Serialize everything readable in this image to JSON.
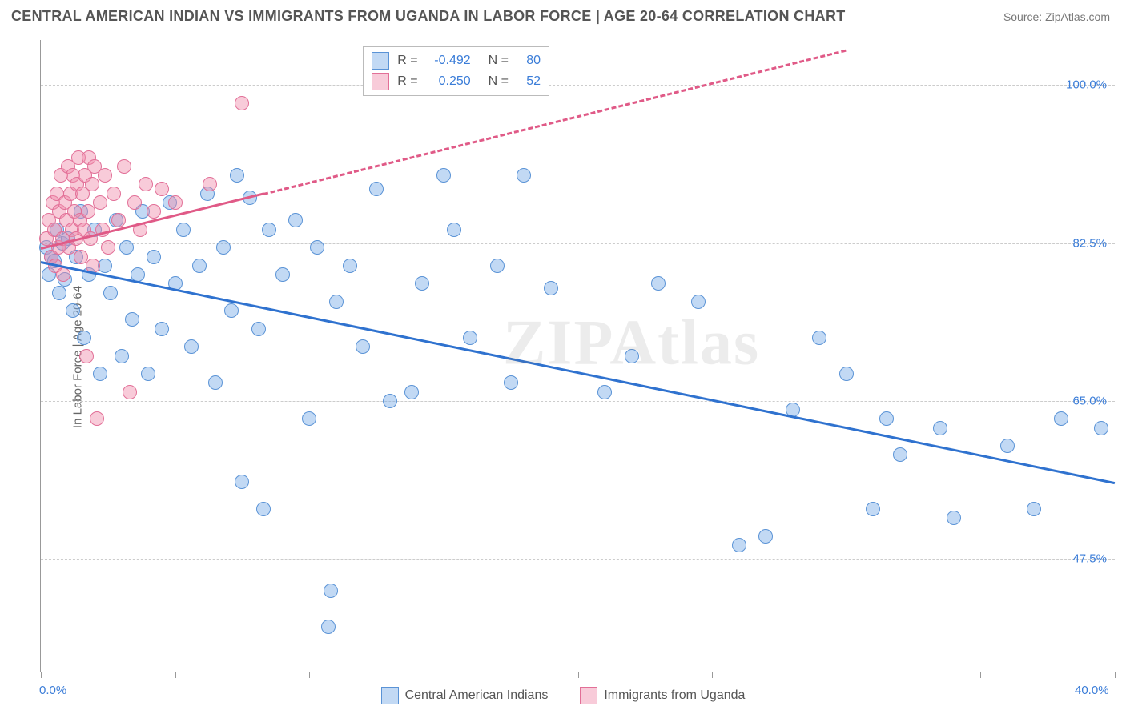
{
  "header": {
    "title": "CENTRAL AMERICAN INDIAN VS IMMIGRANTS FROM UGANDA IN LABOR FORCE | AGE 20-64 CORRELATION CHART",
    "source": "Source: ZipAtlas.com"
  },
  "watermark": "ZIPAtlas",
  "chart": {
    "type": "scatter",
    "y_axis_label": "In Labor Force | Age 20-64",
    "xlim": [
      0,
      40
    ],
    "ylim": [
      35,
      105
    ],
    "x_ticks": [
      0,
      5,
      10,
      15,
      20,
      25,
      30,
      35,
      40
    ],
    "x_tick_labels": {
      "0": "0.0%",
      "40": "40.0%"
    },
    "y_gridlines": [
      47.5,
      65.0,
      82.5,
      100.0
    ],
    "y_tick_labels": [
      "47.5%",
      "65.0%",
      "82.5%",
      "100.0%"
    ],
    "grid_color": "#cccccc",
    "axis_color": "#999999",
    "background_color": "#ffffff",
    "tick_label_color": "#3b7dd8",
    "label_fontsize": 15,
    "series": [
      {
        "name": "Central American Indians",
        "fill": "rgba(120,170,230,0.45)",
        "stroke": "#5a93d6",
        "marker_radius": 9,
        "R": "-0.492",
        "N": "80",
        "trend": {
          "x1": 0,
          "y1": 80.5,
          "x2": 40,
          "y2": 56.0,
          "solid_until_x": 40,
          "color": "#2f72cf",
          "width": 3
        },
        "points": [
          [
            0.2,
            82
          ],
          [
            0.3,
            79
          ],
          [
            0.4,
            81
          ],
          [
            0.5,
            80.5
          ],
          [
            0.6,
            84
          ],
          [
            0.7,
            77
          ],
          [
            0.8,
            82.5
          ],
          [
            0.9,
            78.5
          ],
          [
            1.0,
            83
          ],
          [
            1.2,
            75
          ],
          [
            1.3,
            81
          ],
          [
            1.5,
            86
          ],
          [
            1.6,
            72
          ],
          [
            1.8,
            79
          ],
          [
            2.0,
            84
          ],
          [
            2.2,
            68
          ],
          [
            2.4,
            80
          ],
          [
            2.6,
            77
          ],
          [
            2.8,
            85
          ],
          [
            3.0,
            70
          ],
          [
            3.2,
            82
          ],
          [
            3.4,
            74
          ],
          [
            3.6,
            79
          ],
          [
            3.8,
            86
          ],
          [
            4.0,
            68
          ],
          [
            4.2,
            81
          ],
          [
            4.5,
            73
          ],
          [
            4.8,
            87
          ],
          [
            5.0,
            78
          ],
          [
            5.3,
            84
          ],
          [
            5.6,
            71
          ],
          [
            5.9,
            80
          ],
          [
            6.2,
            88
          ],
          [
            6.5,
            67
          ],
          [
            6.8,
            82
          ],
          [
            7.1,
            75
          ],
          [
            7.3,
            90
          ],
          [
            7.5,
            56
          ],
          [
            7.8,
            87.5
          ],
          [
            8.1,
            73
          ],
          [
            8.3,
            53
          ],
          [
            8.5,
            84
          ],
          [
            9.0,
            79
          ],
          [
            9.5,
            85
          ],
          [
            10.0,
            63
          ],
          [
            10.3,
            82
          ],
          [
            10.7,
            40
          ],
          [
            10.8,
            44
          ],
          [
            11.0,
            76
          ],
          [
            11.5,
            80
          ],
          [
            12.0,
            71
          ],
          [
            12.5,
            88.5
          ],
          [
            13.0,
            65
          ],
          [
            13.8,
            66
          ],
          [
            14.2,
            78
          ],
          [
            15.0,
            90
          ],
          [
            15.4,
            84
          ],
          [
            16.0,
            72
          ],
          [
            17.0,
            80
          ],
          [
            17.5,
            67
          ],
          [
            18.0,
            90
          ],
          [
            19.0,
            77.5
          ],
          [
            21.0,
            66
          ],
          [
            22.0,
            70
          ],
          [
            23.0,
            78
          ],
          [
            24.5,
            76
          ],
          [
            26.0,
            49
          ],
          [
            27.0,
            50
          ],
          [
            28.0,
            64
          ],
          [
            29.0,
            72
          ],
          [
            30.0,
            68
          ],
          [
            31.0,
            53
          ],
          [
            31.5,
            63
          ],
          [
            32.0,
            59
          ],
          [
            33.5,
            62
          ],
          [
            34.0,
            52
          ],
          [
            36.0,
            60
          ],
          [
            37.0,
            53
          ],
          [
            38.0,
            63
          ],
          [
            39.5,
            62
          ]
        ]
      },
      {
        "name": "Immigrants from Uganda",
        "fill": "rgba(240,140,170,0.45)",
        "stroke": "#e26f97",
        "marker_radius": 9,
        "R": "0.250",
        "N": "52",
        "trend": {
          "x1": 0,
          "y1": 82.0,
          "x2": 30,
          "y2": 104.0,
          "solid_until_x": 8.3,
          "color": "#e05a87",
          "width": 3
        },
        "points": [
          [
            0.2,
            83
          ],
          [
            0.3,
            85
          ],
          [
            0.4,
            81
          ],
          [
            0.45,
            87
          ],
          [
            0.5,
            84
          ],
          [
            0.55,
            80
          ],
          [
            0.6,
            88
          ],
          [
            0.65,
            82
          ],
          [
            0.7,
            86
          ],
          [
            0.75,
            90
          ],
          [
            0.8,
            83
          ],
          [
            0.85,
            79
          ],
          [
            0.9,
            87
          ],
          [
            0.95,
            85
          ],
          [
            1.0,
            91
          ],
          [
            1.05,
            82
          ],
          [
            1.1,
            88
          ],
          [
            1.15,
            84
          ],
          [
            1.2,
            90
          ],
          [
            1.25,
            86
          ],
          [
            1.3,
            83
          ],
          [
            1.35,
            89
          ],
          [
            1.4,
            92
          ],
          [
            1.45,
            85
          ],
          [
            1.5,
            81
          ],
          [
            1.55,
            88
          ],
          [
            1.6,
            84
          ],
          [
            1.65,
            90
          ],
          [
            1.7,
            70
          ],
          [
            1.75,
            86
          ],
          [
            1.8,
            92
          ],
          [
            1.85,
            83
          ],
          [
            1.9,
            89
          ],
          [
            1.95,
            80
          ],
          [
            2.0,
            91
          ],
          [
            2.1,
            63
          ],
          [
            2.2,
            87
          ],
          [
            2.3,
            84
          ],
          [
            2.4,
            90
          ],
          [
            2.5,
            82
          ],
          [
            2.7,
            88
          ],
          [
            2.9,
            85
          ],
          [
            3.1,
            91
          ],
          [
            3.3,
            66
          ],
          [
            3.5,
            87
          ],
          [
            3.7,
            84
          ],
          [
            3.9,
            89
          ],
          [
            4.2,
            86
          ],
          [
            4.5,
            88.5
          ],
          [
            5.0,
            87
          ],
          [
            6.3,
            89
          ],
          [
            7.5,
            98
          ]
        ]
      }
    ]
  },
  "stats_box": {
    "rows": [
      {
        "swatch_fill": "rgba(120,170,230,0.45)",
        "swatch_stroke": "#5a93d6",
        "R": "-0.492",
        "N": "80"
      },
      {
        "swatch_fill": "rgba(240,140,170,0.45)",
        "swatch_stroke": "#e26f97",
        "R": "0.250",
        "N": "52"
      }
    ]
  },
  "legend": {
    "items": [
      {
        "label": "Central American Indians",
        "fill": "rgba(120,170,230,0.45)",
        "stroke": "#5a93d6"
      },
      {
        "label": "Immigrants from Uganda",
        "fill": "rgba(240,140,170,0.45)",
        "stroke": "#e26f97"
      }
    ]
  }
}
